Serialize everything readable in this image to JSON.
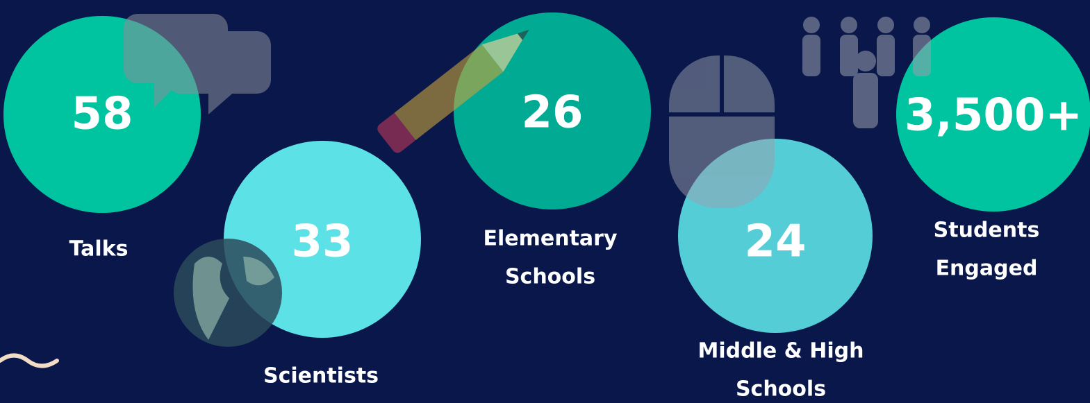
{
  "stats": [
    {
      "value": "58",
      "label": [
        "Talks"
      ]
    },
    {
      "value": "33",
      "label": [
        "Scientists"
      ]
    },
    {
      "value": "26",
      "label": [
        "Elementary",
        "Schools"
      ]
    },
    {
      "value": "24",
      "label": [
        "Middle & High",
        "Schools"
      ]
    },
    {
      "value": "3,500+",
      "label": [
        "Students",
        "Engaged"
      ]
    }
  ]
}
